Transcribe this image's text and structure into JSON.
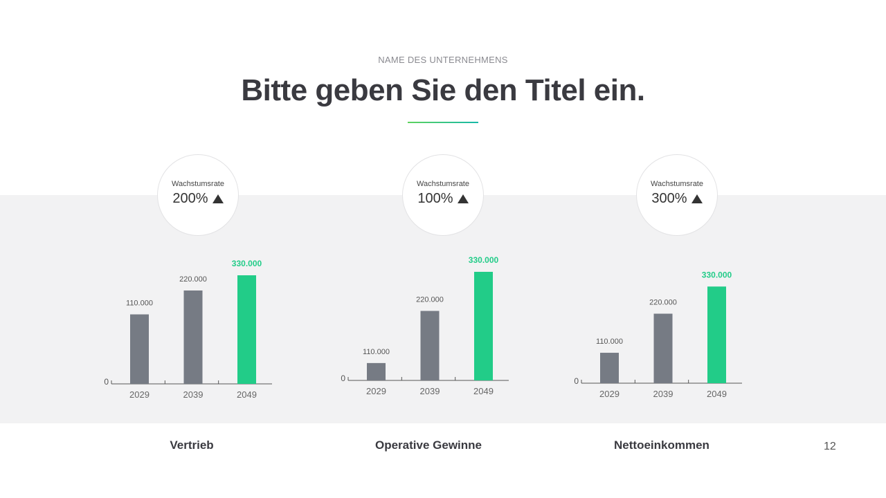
{
  "header": {
    "company": "NAME DES UNTERNEHMENS",
    "title": "Bitte geben Sie den Titel ein."
  },
  "colors": {
    "bar": "#767b84",
    "highlight": "#22cc88",
    "band": "#f2f2f3"
  },
  "growth": [
    {
      "label": "Wachstumsrate",
      "value": "200%",
      "icon": "triangle-up-icon"
    },
    {
      "label": "Wachstumsrate",
      "value": "100%",
      "icon": "triangle-up-icon"
    },
    {
      "label": "Wachstumsrate",
      "value": "300%",
      "icon": "triangle-up-icon"
    }
  ],
  "chart_data": [
    {
      "type": "bar",
      "title": "Vertrieb",
      "categories": [
        "2029",
        "2039",
        "2049"
      ],
      "values": [
        110000,
        220000,
        330000
      ],
      "data_labels": [
        "110.000",
        "220.000",
        "330.000"
      ],
      "bar_level": [
        0.64,
        0.86,
        1.0
      ],
      "zero_label": "0",
      "highlight_index": 2
    },
    {
      "type": "bar",
      "title": "Operative Gewinne",
      "categories": [
        "2029",
        "2039",
        "2049"
      ],
      "values": [
        110000,
        220000,
        330000
      ],
      "data_labels": [
        "110.000",
        "220.000",
        "330.000"
      ],
      "bar_level": [
        0.16,
        0.64,
        1.0
      ],
      "zero_label": "0",
      "highlight_index": 2
    },
    {
      "type": "bar",
      "title": "Nettoeinkommen",
      "categories": [
        "2029",
        "2039",
        "2049"
      ],
      "values": [
        110000,
        220000,
        330000
      ],
      "data_labels": [
        "110.000",
        "220.000",
        "330.000"
      ],
      "bar_level": [
        0.28,
        0.64,
        0.89
      ],
      "zero_label": "0",
      "highlight_index": 2
    }
  ],
  "page_number": "12"
}
